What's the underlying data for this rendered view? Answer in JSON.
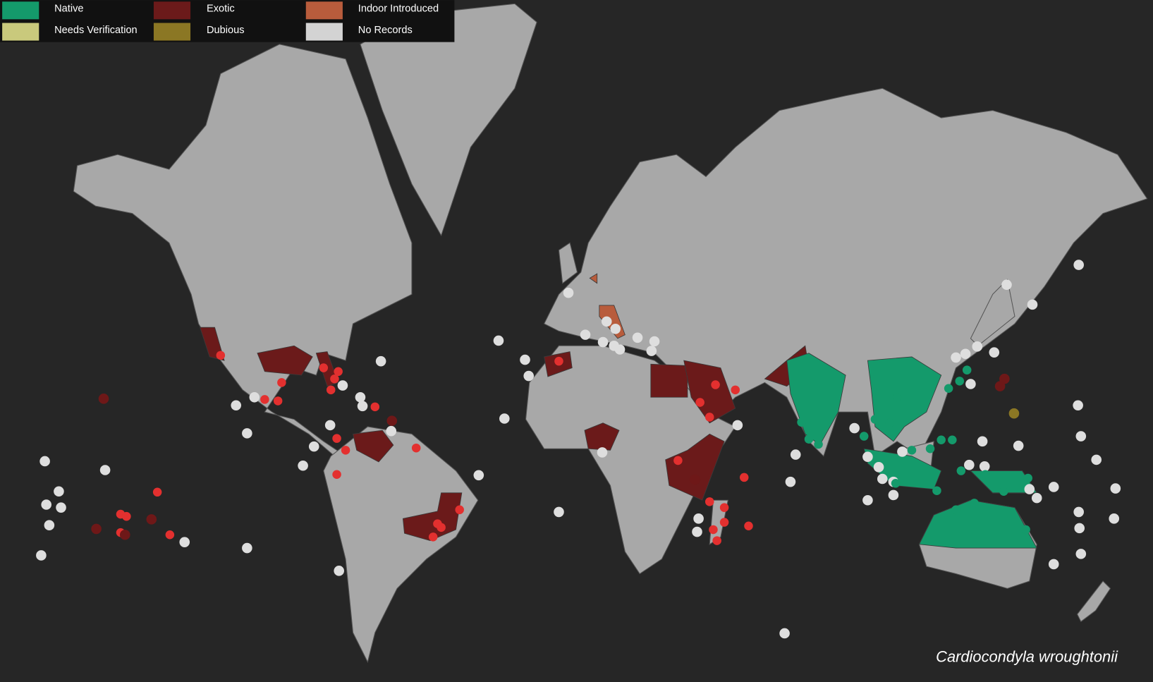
{
  "legend": [
    {
      "label": "Native",
      "color": "#149a6b"
    },
    {
      "label": "Needs Verification",
      "color": "#c9c97c"
    },
    {
      "label": "Exotic",
      "color": "#6b1a1a"
    },
    {
      "label": "Dubious",
      "color": "#8b7724"
    },
    {
      "label": "Indoor Introduced",
      "color": "#b85c3c"
    },
    {
      "label": "No Records",
      "color": "#d3d3d3"
    }
  ],
  "caption": "Cardiocondyla wroughtonii"
}
